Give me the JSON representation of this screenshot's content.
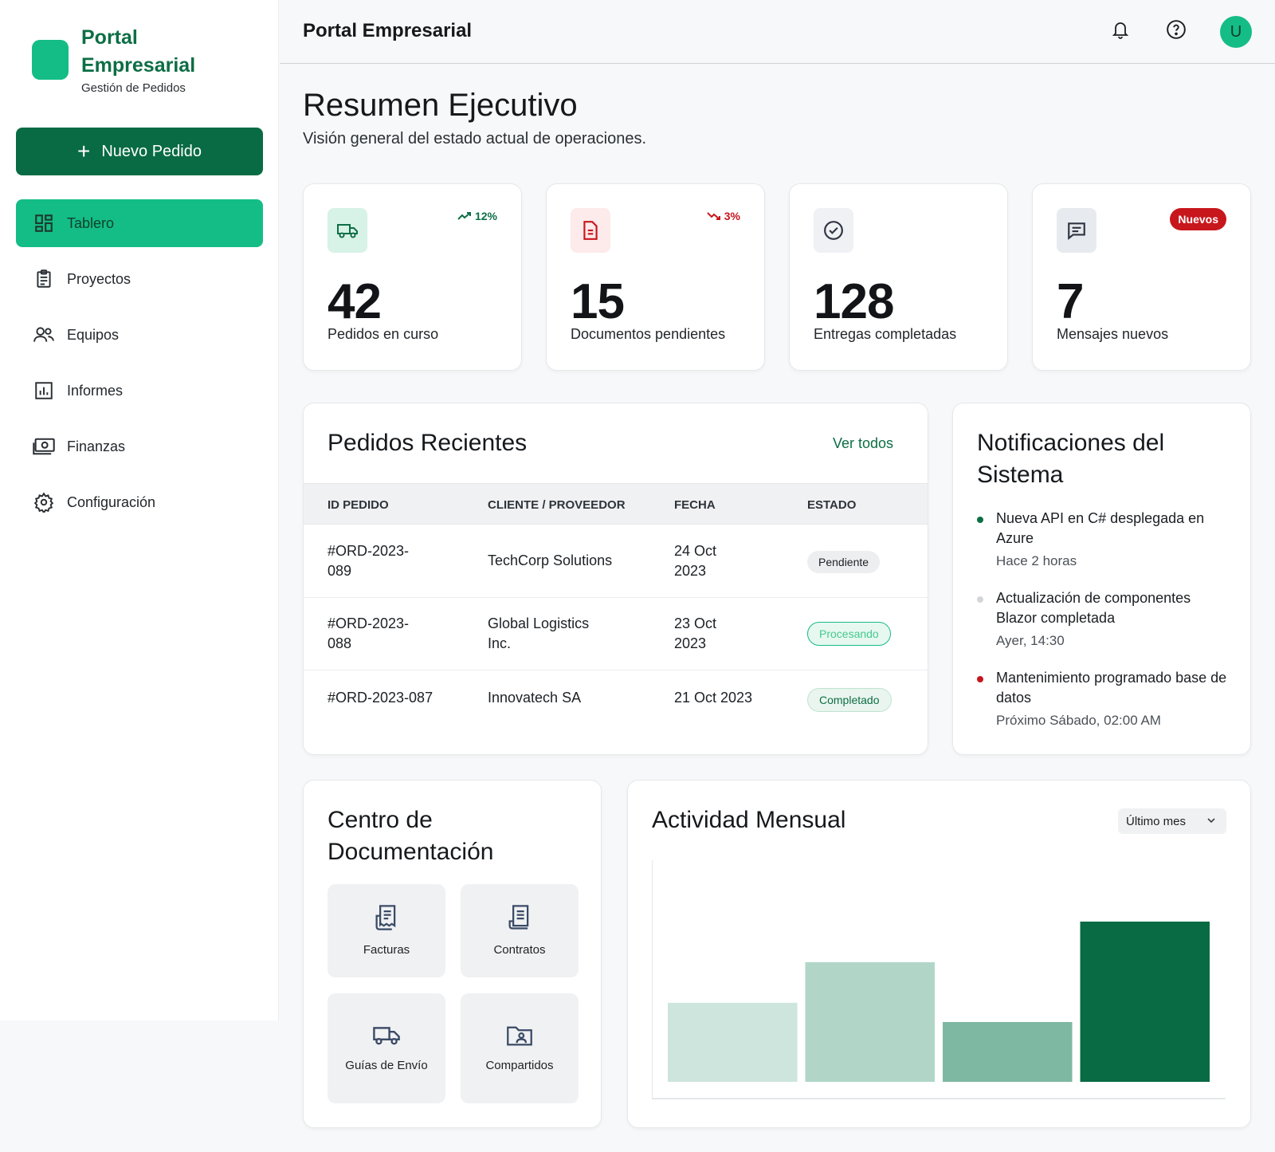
{
  "brand": {
    "title": "Portal Empresarial",
    "subtitle": "Gestión de Pedidos"
  },
  "sidebar": {
    "new_order_label": "Nuevo Pedido",
    "items": [
      {
        "label": "Tablero",
        "icon": "dashboard-icon",
        "active": true
      },
      {
        "label": "Proyectos",
        "icon": "clipboard-icon"
      },
      {
        "label": "Equipos",
        "icon": "users-icon"
      },
      {
        "label": "Informes",
        "icon": "bar-chart-icon"
      },
      {
        "label": "Finanzas",
        "icon": "money-icon"
      },
      {
        "label": "Configuración",
        "icon": "gear-icon"
      }
    ]
  },
  "header": {
    "title": "Portal Empresarial",
    "avatar_initial": "U"
  },
  "page": {
    "title": "Resumen Ejecutivo",
    "subtitle": "Visión general del estado actual de operaciones."
  },
  "stats": [
    {
      "value": "42",
      "label": "Pedidos en curso",
      "trend": "12%",
      "trend_dir": "up",
      "icon": "truck-icon",
      "color": "#0d6e45"
    },
    {
      "value": "15",
      "label": "Documentos pendientes",
      "trend": "3%",
      "trend_dir": "down",
      "icon": "document-icon",
      "color": "#c8161d"
    },
    {
      "value": "128",
      "label": "Entregas completadas",
      "icon": "check-circle-icon"
    },
    {
      "value": "7",
      "label": "Mensajes nuevos",
      "badge": "Nuevos",
      "icon": "message-icon"
    }
  ],
  "orders": {
    "title": "Pedidos Recientes",
    "view_all": "Ver todos",
    "columns": [
      "ID PEDIDO",
      "CLIENTE / PROVEEDOR",
      "FECHA",
      "ESTADO"
    ],
    "rows": [
      {
        "id_line1": "#ORD-2023-",
        "id_line2": "089",
        "client_line1": "TechCorp Solutions",
        "client_line2": "",
        "date_line1": "24 Oct",
        "date_line2": "2023",
        "status": "Pendiente"
      },
      {
        "id_line1": "#ORD-2023-",
        "id_line2": "088",
        "client_line1": "Global Logistics",
        "client_line2": "Inc.",
        "date_line1": "23 Oct",
        "date_line2": "2023",
        "status": "Procesando"
      },
      {
        "id_line1": "#ORD-2023-087",
        "id_line2": "",
        "client_line1": "Innovatech SA",
        "client_line2": "",
        "date_line1": "21 Oct 2023",
        "date_line2": "",
        "status": "Completado"
      }
    ]
  },
  "notifications": {
    "title": "Notificaciones del Sistema",
    "items": [
      {
        "title": "Nueva API en C# desplegada en Azure",
        "time": "Hace 2 horas",
        "color": "#0d6e45"
      },
      {
        "title": "Actualización de componentes Blazor completada",
        "time": "Ayer, 14:30",
        "color": "#d3d6d9"
      },
      {
        "title": "Mantenimiento programado base de datos",
        "time": "Próximo Sábado, 02:00 AM",
        "color": "#c8161d"
      }
    ]
  },
  "docs": {
    "title": "Centro de Documentación",
    "tiles": [
      {
        "label": "Facturas",
        "icon": "receipt-icon"
      },
      {
        "label": "Contratos",
        "icon": "contract-icon"
      },
      {
        "label": "Guías de Envío",
        "icon": "truck-icon"
      },
      {
        "label": "Compartidos",
        "icon": "shared-folder-icon"
      }
    ]
  },
  "activity": {
    "title": "Actividad Mensual",
    "period": "Último mes"
  },
  "chart_data": {
    "type": "bar",
    "categories": [
      "",
      "",
      "",
      ""
    ],
    "values": [
      37,
      56,
      28,
      75
    ],
    "colors": [
      "#cde5dc",
      "#b1d6c8",
      "#7fb8a2",
      "#086b44"
    ],
    "ylim": [
      0,
      100
    ],
    "grid": false
  }
}
